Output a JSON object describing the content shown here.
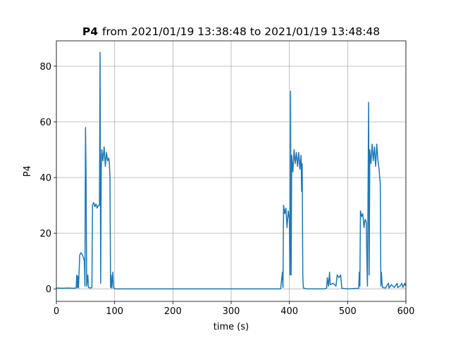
{
  "chart_data": {
    "type": "line",
    "title_variable": "P4",
    "title_range": "from 2021/01/19 13:38:48 to 2021/01/19 13:48:48",
    "x_label": "time (s)",
    "y_label": "P4",
    "color": "#1f77b4",
    "grid": true,
    "xlim": [
      0,
      600
    ],
    "ylim": [
      -4.5,
      89.1
    ],
    "xticks": [
      0,
      100,
      200,
      300,
      400,
      500,
      600
    ],
    "yticks": [
      0,
      20,
      40,
      60,
      80
    ],
    "x": [
      0,
      10,
      20,
      30,
      34,
      35,
      36,
      37,
      38,
      40,
      42,
      44,
      46,
      48,
      49,
      50,
      51,
      52,
      54,
      55,
      58,
      61,
      62,
      64,
      66,
      68,
      70,
      72,
      74,
      75,
      76,
      77,
      78,
      80,
      82,
      84,
      86,
      88,
      90,
      91,
      92,
      93,
      94,
      95,
      97,
      98,
      100,
      150,
      200,
      250,
      300,
      350,
      385,
      388,
      389,
      390,
      392,
      394,
      396,
      398,
      400,
      401,
      402,
      403,
      404,
      406,
      408,
      410,
      412,
      414,
      416,
      418,
      420,
      421,
      422,
      423,
      424,
      430,
      460,
      464,
      465,
      467,
      469,
      470,
      475,
      480,
      482,
      485,
      488,
      490,
      500,
      519,
      520,
      521,
      522,
      524,
      526,
      528,
      530,
      532,
      533,
      534,
      536,
      537,
      538,
      540,
      542,
      544,
      546,
      548,
      550,
      552,
      554,
      555,
      556,
      557,
      558,
      559,
      560,
      565,
      570,
      571,
      575,
      580,
      585,
      586,
      590,
      593,
      595,
      598,
      600
    ],
    "values": [
      0.3,
      0.2,
      0.3,
      0.2,
      0.3,
      5,
      0.5,
      4.5,
      0.3,
      12,
      13,
      12.5,
      11.5,
      10,
      1,
      58,
      40,
      1,
      5,
      0.5,
      0.3,
      0.5,
      30,
      31,
      29.5,
      30.5,
      29,
      30,
      30,
      85,
      2,
      43,
      50,
      46,
      51,
      44,
      49,
      46,
      47,
      45,
      40,
      0.5,
      5,
      0.3,
      6,
      0.5,
      0,
      0,
      0,
      0,
      0,
      0,
      0,
      6,
      0.5,
      30,
      27,
      29,
      22,
      28,
      25,
      5,
      71,
      5,
      48,
      42,
      50,
      45,
      49,
      44,
      49,
      43,
      48,
      35,
      45,
      5,
      0.3,
      0,
      0,
      0.3,
      4,
      1,
      6,
      1.5,
      2,
      1,
      5,
      4,
      5,
      0.2,
      0,
      0.2,
      6,
      1,
      28,
      26,
      27,
      22,
      25,
      24,
      10,
      1,
      67,
      5,
      50,
      45,
      52,
      46,
      51,
      44,
      52,
      46,
      43,
      40,
      38,
      1,
      6,
      2,
      0.5,
      0.3,
      2,
      0.3,
      1.5,
      0.5,
      2,
      0.5,
      1,
      2,
      0.5,
      2,
      1
    ]
  }
}
